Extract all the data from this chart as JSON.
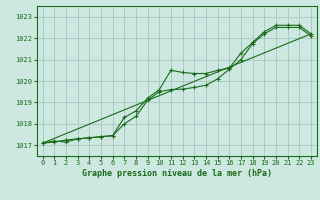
{
  "title": "Graphe pression niveau de la mer (hPa)",
  "bg_color": "#cce8e0",
  "grid_color": "#aaccc4",
  "line_color": "#1a6b1a",
  "xlim": [
    -0.5,
    23.5
  ],
  "ylim": [
    1016.5,
    1023.5
  ],
  "yticks": [
    1017,
    1018,
    1019,
    1020,
    1021,
    1022,
    1023
  ],
  "xticks": [
    0,
    1,
    2,
    3,
    4,
    5,
    6,
    7,
    8,
    9,
    10,
    11,
    12,
    13,
    14,
    15,
    16,
    17,
    18,
    19,
    20,
    21,
    22,
    23
  ],
  "series1": [
    [
      0,
      1017.1
    ],
    [
      1,
      1017.2
    ],
    [
      2,
      1017.15
    ],
    [
      3,
      1017.3
    ],
    [
      4,
      1017.35
    ],
    [
      5,
      1017.4
    ],
    [
      6,
      1017.45
    ],
    [
      7,
      1018.3
    ],
    [
      8,
      1018.6
    ],
    [
      9,
      1019.2
    ],
    [
      10,
      1019.6
    ],
    [
      11,
      1020.5
    ],
    [
      12,
      1020.4
    ],
    [
      13,
      1020.35
    ],
    [
      14,
      1020.35
    ],
    [
      15,
      1020.5
    ],
    [
      16,
      1020.6
    ],
    [
      17,
      1021.3
    ],
    [
      18,
      1021.8
    ],
    [
      19,
      1022.3
    ],
    [
      20,
      1022.6
    ],
    [
      21,
      1022.6
    ],
    [
      22,
      1022.6
    ],
    [
      23,
      1022.2
    ]
  ],
  "series2": [
    [
      0,
      1017.1
    ],
    [
      1,
      1017.15
    ],
    [
      2,
      1017.25
    ],
    [
      3,
      1017.3
    ],
    [
      4,
      1017.35
    ],
    [
      5,
      1017.4
    ],
    [
      6,
      1017.45
    ],
    [
      7,
      1018.0
    ],
    [
      8,
      1018.35
    ],
    [
      9,
      1019.1
    ],
    [
      10,
      1019.5
    ],
    [
      11,
      1019.6
    ],
    [
      12,
      1019.62
    ],
    [
      13,
      1019.7
    ],
    [
      14,
      1019.8
    ],
    [
      15,
      1020.1
    ],
    [
      16,
      1020.55
    ],
    [
      17,
      1021.0
    ],
    [
      18,
      1021.75
    ],
    [
      19,
      1022.2
    ],
    [
      20,
      1022.5
    ],
    [
      21,
      1022.5
    ],
    [
      22,
      1022.5
    ],
    [
      23,
      1022.1
    ]
  ],
  "series3_linear": [
    [
      0,
      1017.1
    ],
    [
      23,
      1022.2
    ]
  ]
}
